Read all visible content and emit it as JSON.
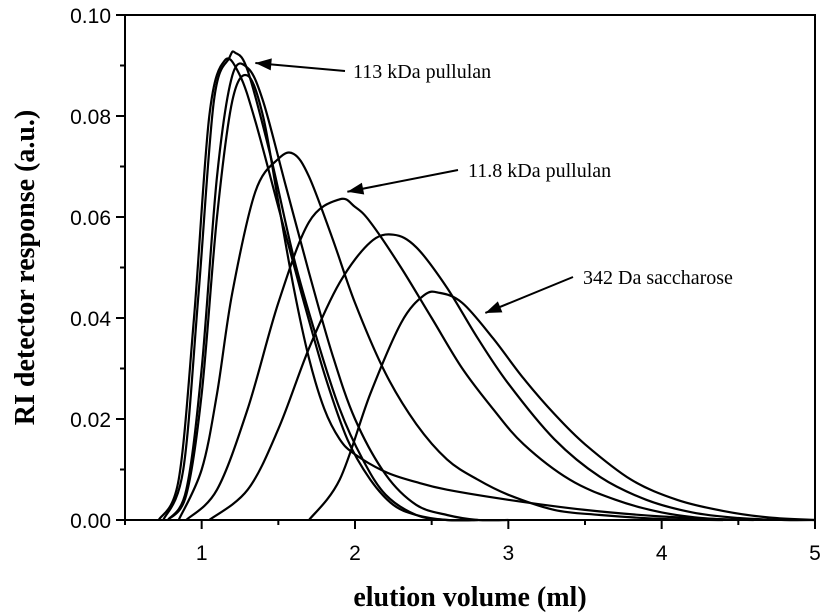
{
  "chart_data": {
    "type": "line",
    "title": "",
    "xlabel": "elution volume (ml)",
    "ylabel": "RI detector response (a.u.)",
    "xlim": [
      0.5,
      5.0
    ],
    "ylim": [
      0.0,
      0.1
    ],
    "x_ticks": [
      "1",
      "2",
      "3",
      "4",
      "5"
    ],
    "y_ticks": [
      "0.00",
      "0.02",
      "0.04",
      "0.06",
      "0.08",
      "0.10"
    ],
    "grid": false,
    "series": [
      {
        "x": [
          0.72,
          0.85,
          0.95,
          1.05,
          1.15,
          1.25,
          1.35,
          1.5,
          1.65,
          1.8,
          1.95,
          2.1,
          2.25,
          2.4,
          2.6,
          2.8
        ],
        "y": [
          0.0,
          0.008,
          0.04,
          0.08,
          0.091,
          0.088,
          0.079,
          0.062,
          0.045,
          0.029,
          0.016,
          0.008,
          0.003,
          0.001,
          0.0,
          0.0
        ]
      },
      {
        "x": [
          0.75,
          0.88,
          0.98,
          1.08,
          1.18,
          1.22,
          1.3,
          1.45,
          1.6,
          1.75,
          1.9,
          2.05,
          2.2,
          2.4,
          2.6,
          2.8
        ],
        "y": [
          0.0,
          0.01,
          0.045,
          0.083,
          0.0915,
          0.0925,
          0.089,
          0.072,
          0.052,
          0.036,
          0.022,
          0.012,
          0.005,
          0.001,
          0.0,
          0.0
        ]
      },
      {
        "x": [
          0.78,
          0.9,
          1.0,
          1.1,
          1.2,
          1.3,
          1.4,
          1.55,
          1.7,
          1.85,
          2.0,
          2.2,
          2.4,
          2.6,
          2.8,
          3.0
        ],
        "y": [
          0.0,
          0.006,
          0.03,
          0.068,
          0.088,
          0.0895,
          0.083,
          0.066,
          0.049,
          0.033,
          0.02,
          0.009,
          0.003,
          0.001,
          0.0,
          0.0
        ]
      },
      {
        "x": [
          0.78,
          0.9,
          1.0,
          1.1,
          1.2,
          1.3,
          1.4,
          1.5,
          1.6,
          1.7,
          1.8,
          1.9,
          2.0,
          2.2,
          2.4,
          2.6,
          3.0,
          3.5,
          4.0,
          4.5
        ],
        "y": [
          0.0,
          0.005,
          0.025,
          0.06,
          0.083,
          0.088,
          0.08,
          0.063,
          0.046,
          0.032,
          0.022,
          0.016,
          0.013,
          0.0095,
          0.0075,
          0.006,
          0.004,
          0.002,
          0.0007,
          0.0
        ]
      },
      {
        "x": [
          0.85,
          1.0,
          1.1,
          1.2,
          1.35,
          1.5,
          1.6,
          1.7,
          1.85,
          2.0,
          2.2,
          2.4,
          2.6,
          2.8,
          3.0,
          3.3,
          3.6,
          4.0,
          4.4
        ],
        "y": [
          0.0,
          0.01,
          0.025,
          0.045,
          0.065,
          0.0715,
          0.0725,
          0.068,
          0.056,
          0.043,
          0.029,
          0.019,
          0.012,
          0.008,
          0.005,
          0.002,
          0.001,
          0.0002,
          0.0
        ]
      },
      {
        "x": [
          0.9,
          1.1,
          1.3,
          1.5,
          1.7,
          1.9,
          2.0,
          2.1,
          2.3,
          2.5,
          2.7,
          2.9,
          3.1,
          3.4,
          3.7,
          4.0,
          4.3,
          4.6
        ],
        "y": [
          0.0,
          0.006,
          0.022,
          0.043,
          0.059,
          0.0635,
          0.062,
          0.059,
          0.05,
          0.04,
          0.03,
          0.022,
          0.015,
          0.008,
          0.004,
          0.0015,
          0.0003,
          0.0
        ]
      },
      {
        "x": [
          1.05,
          1.3,
          1.5,
          1.7,
          1.9,
          2.1,
          2.25,
          2.4,
          2.6,
          2.8,
          3.0,
          3.3,
          3.6,
          3.9,
          4.2,
          4.5,
          4.8,
          5.0
        ],
        "y": [
          0.0,
          0.006,
          0.018,
          0.034,
          0.047,
          0.055,
          0.0565,
          0.054,
          0.046,
          0.036,
          0.027,
          0.016,
          0.0085,
          0.004,
          0.0015,
          0.0004,
          0.0,
          0.0
        ]
      },
      {
        "x": [
          1.7,
          1.9,
          2.1,
          2.3,
          2.45,
          2.55,
          2.7,
          2.9,
          3.1,
          3.3,
          3.5,
          3.8,
          4.1,
          4.4,
          4.7,
          5.0
        ],
        "y": [
          0.0,
          0.008,
          0.025,
          0.039,
          0.0445,
          0.045,
          0.043,
          0.036,
          0.028,
          0.021,
          0.015,
          0.008,
          0.004,
          0.0018,
          0.0005,
          0.0
        ]
      }
    ],
    "annotations": [
      {
        "text": "113 kDa pullulan",
        "arrow_to": [
          1.35,
          0.0905
        ]
      },
      {
        "text": "11.8 kDa pullulan",
        "arrow_to": [
          1.95,
          0.065
        ]
      },
      {
        "text": "342 Da saccharose",
        "arrow_to": [
          2.85,
          0.041
        ]
      }
    ]
  }
}
